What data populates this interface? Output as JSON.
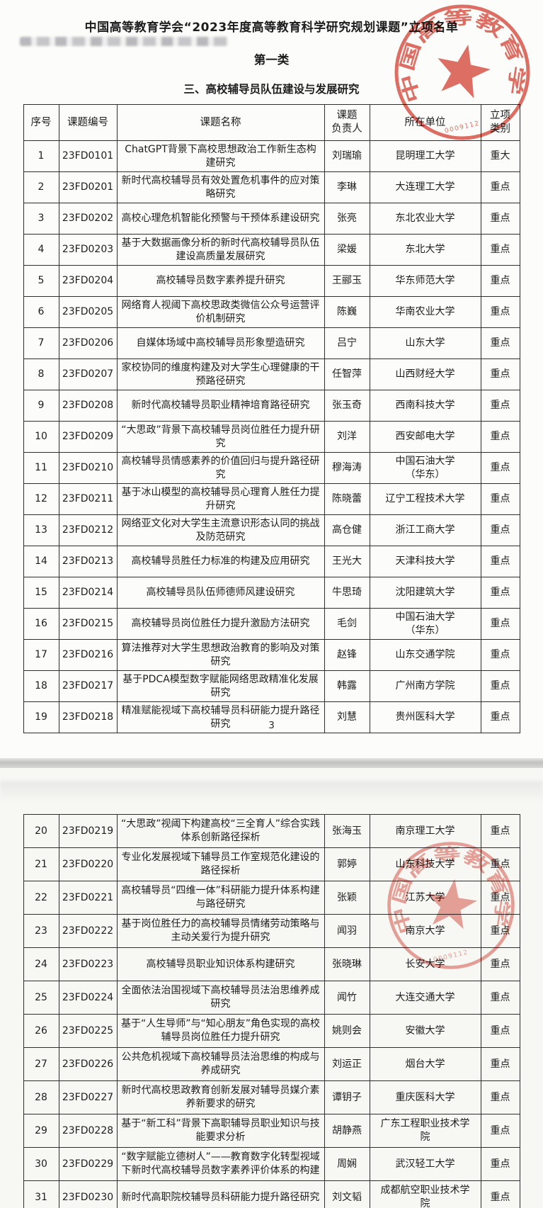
{
  "document": {
    "title": "中国高等教育学会“2023年度高等教育科学研究规划课题”立项名单",
    "category": "第一类",
    "section": "三、高校辅导员队伍建设与发展研究",
    "page_number": "3",
    "stamp": {
      "org_text": "中国高等教育学会",
      "serial": "0009112",
      "color": "#d94f43"
    }
  },
  "table": {
    "headers": [
      "序号",
      "课题编号",
      "课题名称",
      "课题\n负责人",
      "所在单位",
      "立项\n类别"
    ],
    "rows": [
      {
        "no": "1",
        "code": "23FD0101",
        "title": "ChatGPT背景下高校思想政治工作新生态构建研究",
        "leader": "刘瑞瑜",
        "unit": "昆明理工大学",
        "type": "重大"
      },
      {
        "no": "2",
        "code": "23FD0201",
        "title": "新时代高校辅导员有效处置危机事件的应对策略研究",
        "leader": "李琳",
        "unit": "大连理工大学",
        "type": "重点"
      },
      {
        "no": "3",
        "code": "23FD0202",
        "title": "高校心理危机智能化预警与干预体系建设研究",
        "leader": "张亮",
        "unit": "东北农业大学",
        "type": "重点"
      },
      {
        "no": "4",
        "code": "23FD0203",
        "title": "基于大数据画像分析的新时代高校辅导员队伍建设高质量发展研究",
        "leader": "梁媛",
        "unit": "东北大学",
        "type": "重点"
      },
      {
        "no": "5",
        "code": "23FD0204",
        "title": "高校辅导员数字素养提升研究",
        "leader": "王郦玉",
        "unit": "华东师范大学",
        "type": "重点"
      },
      {
        "no": "6",
        "code": "23FD0205",
        "title": "网络育人视阈下高校思政类微信公众号运营评价机制研究",
        "leader": "陈巍",
        "unit": "华南农业大学",
        "type": "重点"
      },
      {
        "no": "7",
        "code": "23FD0206",
        "title": "自媒体场域中高校辅导员形象塑造研究",
        "leader": "吕宁",
        "unit": "山东大学",
        "type": "重点"
      },
      {
        "no": "8",
        "code": "23FD0207",
        "title": "家校协同的维度构建及对大学生心理健康的干预路径研究",
        "leader": "任智萍",
        "unit": "山西财经大学",
        "type": "重点"
      },
      {
        "no": "9",
        "code": "23FD0208",
        "title": "新时代高校辅导员职业精神培育路径研究",
        "leader": "张玉奇",
        "unit": "西南科技大学",
        "type": "重点"
      },
      {
        "no": "10",
        "code": "23FD0209",
        "title": "“大思政”背景下高校辅导员岗位胜任力提升研究",
        "leader": "刘洋",
        "unit": "西安邮电大学",
        "type": "重点"
      },
      {
        "no": "11",
        "code": "23FD0210",
        "title": "高校辅导员情感素养的价值回归与提升路径研究",
        "leader": "穆海涛",
        "unit": "中国石油大学\n（华东）",
        "type": "重点"
      },
      {
        "no": "12",
        "code": "23FD0211",
        "title": "基于冰山模型的高校辅导员心理育人胜任力提升研究",
        "leader": "陈晓蕾",
        "unit": "辽宁工程技术大学",
        "type": "重点"
      },
      {
        "no": "13",
        "code": "23FD0212",
        "title": "网络亚文化对大学生主流意识形态认同的挑战及防范研究",
        "leader": "高仓健",
        "unit": "浙江工商大学",
        "type": "重点"
      },
      {
        "no": "14",
        "code": "23FD0213",
        "title": "高校辅导员胜任力标准的构建及应用研究",
        "leader": "王光大",
        "unit": "天津科技大学",
        "type": "重点"
      },
      {
        "no": "15",
        "code": "23FD0214",
        "title": "高校辅导员队伍师德师风建设研究",
        "leader": "牛思琦",
        "unit": "沈阳建筑大学",
        "type": "重点"
      },
      {
        "no": "16",
        "code": "23FD0215",
        "title": "高校辅导员岗位胜任力提升激励方法研究",
        "leader": "毛剑",
        "unit": "中国石油大学\n（华东）",
        "type": "重点"
      },
      {
        "no": "17",
        "code": "23FD0216",
        "title": "算法推荐对大学生思想政治教育的影响及对策研究",
        "leader": "赵锋",
        "unit": "山东交通学院",
        "type": "重点"
      },
      {
        "no": "18",
        "code": "23FD0217",
        "title": "基于PDCA模型数字赋能网络思政精准化发展研究",
        "leader": "韩露",
        "unit": "广州南方学院",
        "type": "重点"
      },
      {
        "no": "19",
        "code": "23FD0218",
        "title": "精准赋能视域下高校辅导员科研能力提升路径研究",
        "leader": "刘慧",
        "unit": "贵州医科大学",
        "type": "重点"
      },
      {
        "no": "20",
        "code": "23FD0219",
        "title": "“大思政”视阈下构建高校“三全育人”综合实践体系创新路径探析",
        "leader": "张海玉",
        "unit": "南京理工大学",
        "type": "重点"
      },
      {
        "no": "21",
        "code": "23FD0220",
        "title": "专业化发展视域下辅导员工作室规范化建设的路径探析",
        "leader": "郭婷",
        "unit": "山东科技大学",
        "type": "重点"
      },
      {
        "no": "22",
        "code": "23FD0221",
        "title": "高校辅导员“四维一体”科研能力提升体系构建与路径研究",
        "leader": "张颖",
        "unit": "江苏大学",
        "type": "重点"
      },
      {
        "no": "23",
        "code": "23FD0222",
        "title": "基于岗位胜任力的高校辅导员情绪劳动策略与主动关爱行为提升研究",
        "leader": "闻羽",
        "unit": "南京大学",
        "type": "重点"
      },
      {
        "no": "24",
        "code": "23FD0223",
        "title": "高校辅导员职业知识体系构建研究",
        "leader": "张晓琳",
        "unit": "长安大学",
        "type": "重点"
      },
      {
        "no": "25",
        "code": "23FD0224",
        "title": "全面依法治国视域下高校辅导员法治思维养成研究",
        "leader": "闻竹",
        "unit": "大连交通大学",
        "type": "重点"
      },
      {
        "no": "26",
        "code": "23FD0225",
        "title": "基于“人生导师”与“知心朋友”角色实现的高校辅导员岗位胜任力提升研究",
        "leader": "姚则会",
        "unit": "安徽大学",
        "type": "重点"
      },
      {
        "no": "27",
        "code": "23FD0226",
        "title": "公共危机视域下高校辅导员法治思维的构成与养成研究",
        "leader": "刘运正",
        "unit": "烟台大学",
        "type": "重点"
      },
      {
        "no": "28",
        "code": "23FD0227",
        "title": "新时代高校思政教育创新发展对辅导员媒介素养新要求的研究",
        "leader": "谭钥子",
        "unit": "重庆医科大学",
        "type": "重点"
      },
      {
        "no": "29",
        "code": "23FD0228",
        "title": "基于“新工科”背景下高职辅导员职业知识与技能要求分析",
        "leader": "胡静燕",
        "unit": "广东工程职业技术学\n院",
        "type": "重点"
      },
      {
        "no": "30",
        "code": "23FD0229",
        "title": "“数字赋能立德树人”——教育数字化转型视域下新时代高校辅导员数字素养评价体系的构建",
        "leader": "周娴",
        "unit": "武汉轻工大学",
        "type": "重点"
      },
      {
        "no": "31",
        "code": "23FD0230",
        "title": "新时代高职院校辅导员科研能力提升路径研究",
        "leader": "刘文韬",
        "unit": "成都航空职业技术学\n院",
        "type": "重点"
      }
    ]
  }
}
